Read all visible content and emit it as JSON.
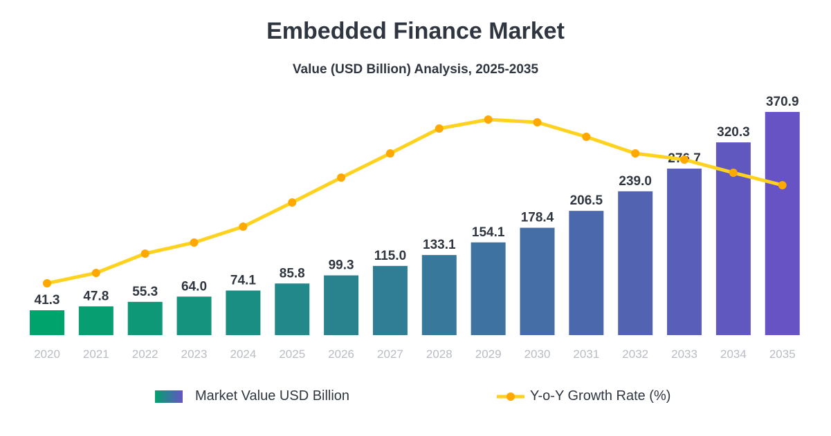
{
  "chart_data": {
    "type": "bar",
    "title": "Embedded Finance Market",
    "subtitle": "Value (USD Billion) Analysis, 2025-2035",
    "categories": [
      "2020",
      "2021",
      "2022",
      "2023",
      "2024",
      "2025",
      "2026",
      "2027",
      "2028",
      "2029",
      "2030",
      "2031",
      "2032",
      "2033",
      "2034",
      "2035"
    ],
    "series": [
      {
        "name": "Market Value USD Billion",
        "type": "bar",
        "values": [
          41.3,
          47.8,
          55.3,
          64.0,
          74.1,
          85.8,
          99.3,
          115.0,
          133.1,
          154.1,
          178.4,
          206.5,
          239.0,
          276.7,
          320.3,
          370.9
        ]
      },
      {
        "name": "Y-o-Y Growth Rate (%)",
        "type": "line",
        "values": [
          7.5,
          9.0,
          11.8,
          13.4,
          15.7,
          19.2,
          22.8,
          26.3,
          29.9,
          31.2,
          30.8,
          28.7,
          26.3,
          25.4,
          23.5,
          21.7
        ]
      }
    ],
    "ylim": [
      0,
      370.9
    ],
    "grid": false,
    "legend": "bottom",
    "colors": {
      "bar_start": "#00A36C",
      "bar_end": "#6753C4",
      "line": "#FFD21F",
      "marker": "#FFA800",
      "text": "#2F3640",
      "tick": "#B8BCC4"
    }
  }
}
